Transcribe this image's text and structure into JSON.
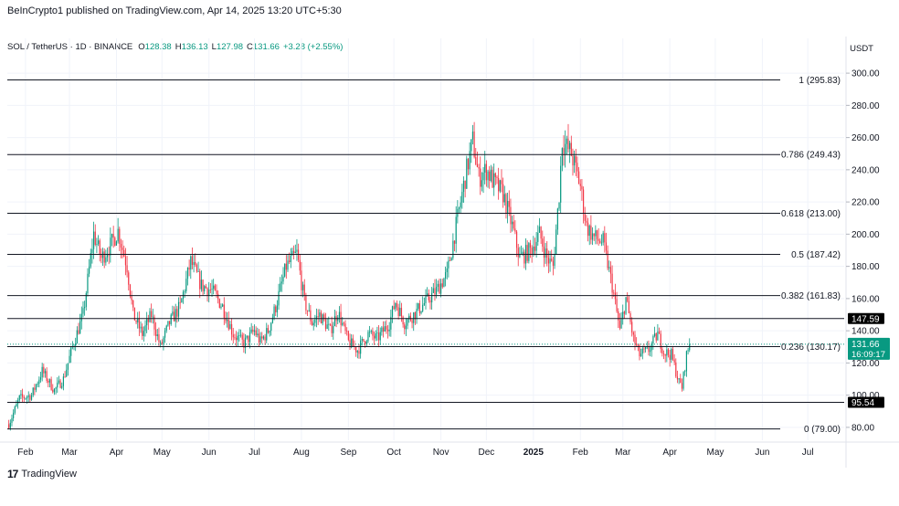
{
  "header": {
    "published": "BeInCrypto1 published on TradingView.com, Apr 14, 2025 13:20 UTC+5:30",
    "symbol": "SOL / TetherUS · 1D · BINANCE",
    "open_label": "O",
    "open": "128.38",
    "high_label": "H",
    "high": "136.13",
    "low_label": "L",
    "low": "127.98",
    "close_label": "C",
    "close": "131.66",
    "change": "+3.28 (+2.55%)",
    "currency": "USDT"
  },
  "footer": {
    "brand": "TradingView",
    "logo_text": "17"
  },
  "colors": {
    "up": "#089981",
    "down": "#f23645",
    "line": "#131722",
    "grid": "#f0f3fa"
  },
  "chart_data": {
    "type": "candlestick",
    "ylim": [
      72,
      308
    ],
    "y_ticks": [
      "300.00",
      "280.00",
      "260.00",
      "240.00",
      "220.00",
      "200.00",
      "180.00",
      "160.00",
      "140.00",
      "120.00",
      "100.00",
      "80.00"
    ],
    "x_ticks": [
      {
        "label": "Feb",
        "date": "2024-02-01"
      },
      {
        "label": "Mar",
        "date": "2024-03-01"
      },
      {
        "label": "Apr",
        "date": "2024-04-01"
      },
      {
        "label": "May",
        "date": "2024-05-01"
      },
      {
        "label": "Jun",
        "date": "2024-06-01"
      },
      {
        "label": "Jul",
        "date": "2024-07-01"
      },
      {
        "label": "Aug",
        "date": "2024-08-01"
      },
      {
        "label": "Sep",
        "date": "2024-09-01"
      },
      {
        "label": "Oct",
        "date": "2024-10-01"
      },
      {
        "label": "Nov",
        "date": "2024-11-01"
      },
      {
        "label": "Dec",
        "date": "2024-12-01"
      },
      {
        "label": "2025",
        "date": "2025-01-01",
        "bold": true
      },
      {
        "label": "Feb",
        "date": "2025-02-01"
      },
      {
        "label": "Mar",
        "date": "2025-03-01"
      },
      {
        "label": "Apr",
        "date": "2025-04-01"
      },
      {
        "label": "May",
        "date": "2025-05-01"
      },
      {
        "label": "Jun",
        "date": "2025-06-01"
      },
      {
        "label": "Jul",
        "date": "2025-07-01"
      }
    ],
    "fib_levels": [
      {
        "label": "1 (295.83)",
        "value": 295.83
      },
      {
        "label": "0.786 (249.43)",
        "value": 249.43
      },
      {
        "label": "0.618 (213.00)",
        "value": 213.0
      },
      {
        "label": "0.5 (187.42)",
        "value": 187.42
      },
      {
        "label": "0.382 (161.83)",
        "value": 161.83
      },
      {
        "label": "0.236 (130.17)",
        "value": 130.17
      },
      {
        "label": "0 (79.00)",
        "value": 79.0
      }
    ],
    "extra_lines": [
      {
        "label": "147.59",
        "value": 147.59
      },
      {
        "label": "95.54",
        "value": 95.54
      }
    ],
    "last_price": {
      "label": "131.66",
      "value": 131.66,
      "countdown": "16:09:17"
    },
    "price_path": [
      [
        "2024-01-21",
        82
      ],
      [
        "2024-01-28",
        98
      ],
      [
        "2024-02-05",
        100
      ],
      [
        "2024-02-12",
        115
      ],
      [
        "2024-02-20",
        103
      ],
      [
        "2024-02-26",
        110
      ],
      [
        "2024-03-03",
        130
      ],
      [
        "2024-03-10",
        150
      ],
      [
        "2024-03-17",
        200
      ],
      [
        "2024-03-22",
        185
      ],
      [
        "2024-03-28",
        193
      ],
      [
        "2024-04-02",
        202
      ],
      [
        "2024-04-08",
        180
      ],
      [
        "2024-04-12",
        150
      ],
      [
        "2024-04-18",
        138
      ],
      [
        "2024-04-24",
        150
      ],
      [
        "2024-04-30",
        130
      ],
      [
        "2024-05-06",
        145
      ],
      [
        "2024-05-13",
        155
      ],
      [
        "2024-05-20",
        183
      ],
      [
        "2024-05-27",
        168
      ],
      [
        "2024-06-03",
        165
      ],
      [
        "2024-06-10",
        155
      ],
      [
        "2024-06-17",
        138
      ],
      [
        "2024-06-24",
        132
      ],
      [
        "2024-07-01",
        140
      ],
      [
        "2024-07-05",
        133
      ],
      [
        "2024-07-10",
        140
      ],
      [
        "2024-07-15",
        155
      ],
      [
        "2024-07-22",
        180
      ],
      [
        "2024-07-29",
        188
      ],
      [
        "2024-08-03",
        158
      ],
      [
        "2024-08-08",
        145
      ],
      [
        "2024-08-13",
        150
      ],
      [
        "2024-08-20",
        140
      ],
      [
        "2024-08-25",
        152
      ],
      [
        "2024-09-01",
        133
      ],
      [
        "2024-09-07",
        128
      ],
      [
        "2024-09-14",
        138
      ],
      [
        "2024-09-20",
        135
      ],
      [
        "2024-09-28",
        145
      ],
      [
        "2024-10-02",
        158
      ],
      [
        "2024-10-08",
        145
      ],
      [
        "2024-10-14",
        150
      ],
      [
        "2024-10-22",
        158
      ],
      [
        "2024-10-29",
        165
      ],
      [
        "2024-11-05",
        175
      ],
      [
        "2024-11-12",
        210
      ],
      [
        "2024-11-18",
        240
      ],
      [
        "2024-11-22",
        258
      ],
      [
        "2024-11-26",
        235
      ],
      [
        "2024-12-01",
        240
      ],
      [
        "2024-12-06",
        232
      ],
      [
        "2024-12-12",
        225
      ],
      [
        "2024-12-18",
        205
      ],
      [
        "2024-12-23",
        185
      ],
      [
        "2024-12-30",
        190
      ],
      [
        "2025-01-05",
        200
      ],
      [
        "2025-01-10",
        185
      ],
      [
        "2025-01-14",
        180
      ],
      [
        "2025-01-18",
        225
      ],
      [
        "2025-01-20",
        258
      ],
      [
        "2025-01-26",
        250
      ],
      [
        "2025-02-01",
        230
      ],
      [
        "2025-02-05",
        205
      ],
      [
        "2025-02-10",
        198
      ],
      [
        "2025-02-16",
        195
      ],
      [
        "2025-02-22",
        168
      ],
      [
        "2025-02-27",
        140
      ],
      [
        "2025-03-03",
        160
      ],
      [
        "2025-03-08",
        135
      ],
      [
        "2025-03-12",
        125
      ],
      [
        "2025-03-18",
        128
      ],
      [
        "2025-03-24",
        138
      ],
      [
        "2025-03-28",
        127
      ],
      [
        "2025-04-02",
        125
      ],
      [
        "2025-04-07",
        108
      ],
      [
        "2025-04-09",
        105
      ],
      [
        "2025-04-12",
        125
      ],
      [
        "2025-04-14",
        131.66
      ]
    ]
  }
}
